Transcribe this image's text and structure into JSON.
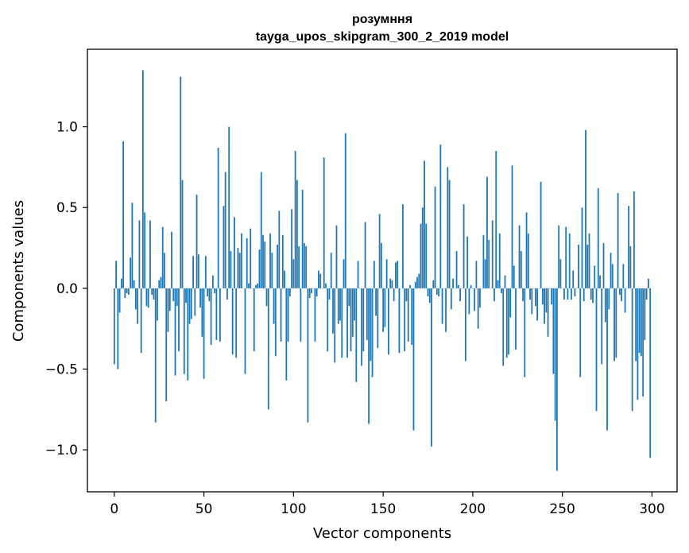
{
  "chart_data": {
    "type": "bar",
    "title": "розумння",
    "subtitle": "tayga_upos_skipgram_300_2_2019 model",
    "xlabel": "Vector components",
    "ylabel": "Components values",
    "xlim": [
      -15,
      314
    ],
    "ylim": [
      -1.26,
      1.48
    ],
    "xticks": [
      0,
      50,
      100,
      150,
      200,
      250,
      300
    ],
    "xtick_labels": [
      "0",
      "50",
      "100",
      "150",
      "200",
      "250",
      "300"
    ],
    "yticks": [
      -1.0,
      -0.5,
      0.0,
      0.5,
      1.0
    ],
    "ytick_labels": [
      "−1.0",
      "−0.5",
      "0.0",
      "0.5",
      "1.0"
    ],
    "grid": false,
    "bar_color": "#1f77b4",
    "values": [
      -0.47,
      0.17,
      -0.5,
      -0.15,
      0.06,
      0.91,
      -0.06,
      -0.03,
      -0.04,
      0.19,
      0.53,
      0.05,
      -0.13,
      -0.22,
      0.42,
      -0.4,
      1.35,
      0.47,
      -0.11,
      -0.12,
      0.42,
      -0.04,
      -0.07,
      -0.83,
      -0.2,
      0.05,
      0.07,
      0.38,
      0.22,
      -0.7,
      -0.27,
      -0.14,
      0.35,
      -0.08,
      -0.54,
      -0.11,
      -0.39,
      1.31,
      0.67,
      -0.53,
      -0.09,
      -0.57,
      -0.22,
      -0.19,
      0.2,
      -0.17,
      0.58,
      0.21,
      -0.12,
      -0.3,
      -0.56,
      0.2,
      -0.05,
      -0.08,
      -0.35,
      0.08,
      -0.03,
      -0.32,
      0.87,
      -0.33,
      0.0,
      0.51,
      0.72,
      -0.07,
      1.0,
      0.23,
      -0.41,
      0.44,
      -0.43,
      0.25,
      0.22,
      0.34,
      0.0,
      -0.53,
      0.31,
      0.03,
      0.37,
      0.0,
      -0.39,
      0.02,
      0.03,
      0.24,
      0.72,
      0.33,
      0.29,
      -0.11,
      -0.75,
      0.34,
      0.22,
      -0.22,
      -0.42,
      0.27,
      0.48,
      -0.33,
      0.33,
      0.11,
      -0.57,
      -0.33,
      -0.05,
      0.49,
      0.18,
      0.85,
      0.67,
      0.26,
      -0.33,
      0.61,
      0.28,
      0.26,
      -0.83,
      -0.06,
      -0.03,
      0.0,
      -0.33,
      -0.05,
      0.11,
      0.09,
      0.0,
      0.81,
      0.03,
      -0.39,
      -0.07,
      0.22,
      -0.28,
      -0.46,
      0.39,
      -0.22,
      -0.2,
      -0.43,
      0.18,
      0.96,
      -0.43,
      -0.11,
      -0.39,
      -0.3,
      -0.2,
      -0.58,
      0.17,
      0.0,
      -0.48,
      -0.39,
      0.41,
      -0.32,
      -0.84,
      -0.45,
      -0.55,
      0.17,
      -0.17,
      -0.37,
      0.46,
      0.28,
      -0.27,
      -0.24,
      0.18,
      -0.41,
      0.06,
      0.05,
      -0.08,
      0.16,
      0.17,
      -0.4,
      0.0,
      0.52,
      -0.39,
      -0.08,
      -0.33,
      0.02,
      -0.35,
      -0.88,
      0.04,
      0.07,
      0.09,
      0.4,
      0.5,
      0.79,
      0.4,
      -0.05,
      -0.09,
      -0.98,
      0.05,
      0.63,
      -0.04,
      -0.05,
      0.89,
      -0.22,
      0.0,
      -0.27,
      0.75,
      0.67,
      -0.13,
      0.06,
      0.0,
      0.23,
      0.02,
      -0.08,
      0.0,
      0.52,
      -0.45,
      0.32,
      -0.16,
      0.02,
      0.0,
      -0.14,
      0.17,
      -0.25,
      -0.12,
      0.0,
      0.33,
      0.18,
      0.69,
      0.3,
      0.0,
      0.42,
      -0.08,
      0.85,
      0.05,
      0.34,
      -0.03,
      -0.48,
      0.08,
      -0.43,
      -0.41,
      -0.18,
      0.76,
      0.14,
      -0.38,
      0.0,
      0.39,
      0.23,
      -0.08,
      -0.55,
      0.47,
      0.34,
      -0.07,
      -0.16,
      0.0,
      -0.11,
      -0.2,
      0.0,
      0.66,
      -0.1,
      -0.22,
      -0.15,
      -0.3,
      0.0,
      -0.1,
      -0.53,
      -0.82,
      -1.13,
      0.39,
      0.18,
      0.0,
      -0.07,
      0.38,
      -0.07,
      0.34,
      -0.07,
      0.11,
      -0.05,
      0.0,
      0.27,
      -0.55,
      0.5,
      -0.08,
      0.98,
      0.27,
      0.34,
      -0.07,
      -0.09,
      0.14,
      -0.76,
      0.62,
      0.08,
      -0.47,
      0.28,
      -0.21,
      -0.88,
      -0.13,
      0.22,
      0.15,
      -0.45,
      -0.43,
      0.59,
      -0.04,
      -0.08,
      0.15,
      -0.15,
      0.0,
      0.51,
      0.26,
      -0.76,
      0.6,
      -0.45,
      -0.69,
      -0.4,
      -0.42,
      -0.67,
      -0.32,
      -0.07,
      0.06,
      -1.05
    ]
  }
}
